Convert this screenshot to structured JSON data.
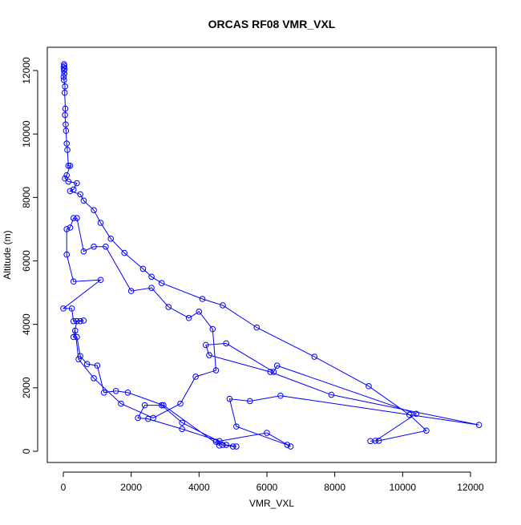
{
  "chart_data": {
    "type": "line",
    "title": "ORCAS RF08 VMR_VXL",
    "x_label": "VMR_VXL",
    "y_label": "Altitude (m)",
    "color": "#0000ff",
    "markers": true,
    "x": [
      20,
      30,
      10,
      40,
      20,
      30,
      10,
      20,
      50,
      40,
      60,
      50,
      70,
      80,
      100,
      120,
      150,
      200,
      100,
      50,
      150,
      400,
      300,
      200,
      500,
      600,
      900,
      1100,
      1400,
      1800,
      2350,
      2600,
      2900,
      4100,
      4700,
      5700,
      7400,
      9000,
      10200,
      10700,
      9300,
      9050,
      9200,
      10400,
      6300,
      6200,
      4800,
      4200,
      4300,
      6100,
      7900,
      12250,
      6400,
      5500,
      4900,
      5100,
      6600,
      6700,
      6000,
      4500,
      4700,
      5000,
      5100,
      4800,
      3500,
      2900,
      2400,
      2200,
      2500,
      3500,
      4600,
      4600,
      2950,
      1900,
      1550,
      1200,
      1000,
      700,
      500,
      400,
      300,
      400,
      500,
      600,
      300,
      250,
      0,
      1100,
      300,
      100,
      100,
      200,
      300,
      400,
      600,
      900,
      1250,
      2000,
      2600,
      3100,
      3700,
      4000,
      4400,
      4500,
      3900,
      3450,
      2650,
      1700,
      900,
      450,
      350
    ],
    "values": [
      12200,
      12150,
      12100,
      12050,
      12000,
      11900,
      11800,
      11700,
      11500,
      11300,
      10800,
      10600,
      10300,
      10100,
      9700,
      9500,
      9000,
      9000,
      8700,
      8600,
      8500,
      8450,
      8250,
      8200,
      8100,
      7900,
      7600,
      7200,
      6700,
      6250,
      5750,
      5500,
      5300,
      4800,
      4600,
      3900,
      2980,
      2050,
      1150,
      650,
      330,
      320,
      330,
      1180,
      2700,
      2500,
      3400,
      3350,
      3030,
      2500,
      1780,
      830,
      1750,
      1580,
      1650,
      780,
      200,
      150,
      580,
      300,
      200,
      150,
      150,
      200,
      900,
      1450,
      1450,
      1050,
      1020,
      700,
      320,
      180,
      1450,
      1850,
      1900,
      1850,
      2700,
      2750,
      3000,
      3600,
      3600,
      4100,
      4100,
      4120,
      4100,
      4500,
      4500,
      5400,
      5350,
      6200,
      7000,
      7050,
      7350,
      7350,
      6300,
      6450,
      6450,
      5050,
      5150,
      4550,
      4200,
      4400,
      3850,
      2550,
      2350,
      1500,
      1050,
      1500,
      2300,
      2900,
      3800
    ],
    "xlim": [
      -472,
      12756
    ],
    "ylim": [
      -354,
      12733
    ],
    "xticks": [
      0,
      2000,
      4000,
      6000,
      8000,
      10000,
      12000
    ],
    "yticks": [
      0,
      2000,
      4000,
      6000,
      8000,
      10000,
      12000
    ]
  }
}
